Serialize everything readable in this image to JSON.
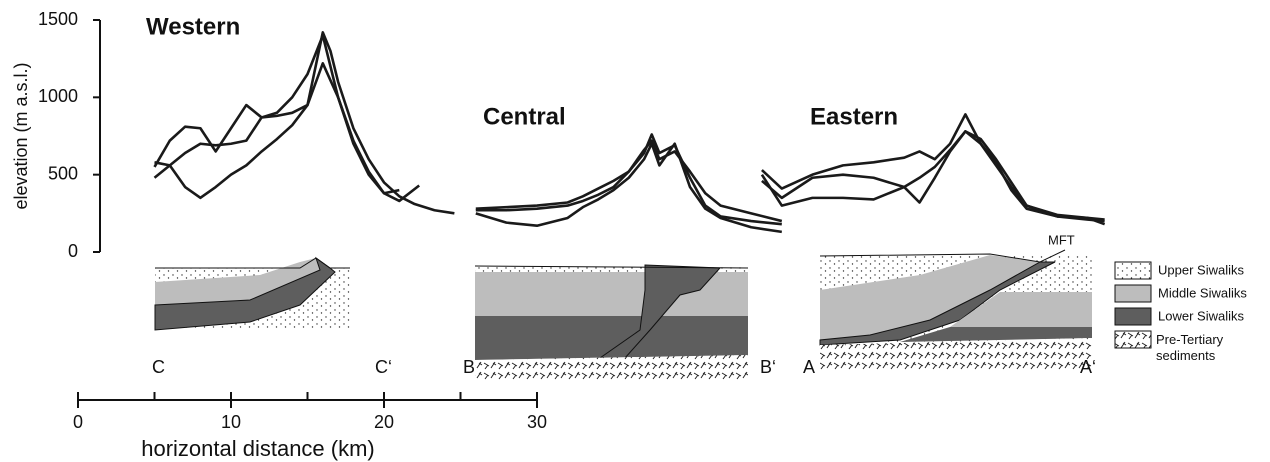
{
  "chart_data": {
    "type": "line",
    "y_label": "elevation (m a.s.l.)",
    "x_label": "horizontal distance (km)",
    "xlim": [
      0,
      30
    ],
    "xticks": [
      0,
      10,
      20,
      30
    ],
    "xminor_ticks": [
      5,
      15,
      25
    ],
    "ylim": [
      0,
      1500
    ],
    "yticks": [
      0,
      500,
      1000,
      1500
    ],
    "color": "#1a1a1a",
    "panels": [
      {
        "title": "Western",
        "section_labels": [
          "C",
          "C‘"
        ],
        "profiles": [
          {
            "x": [
              5,
              6,
              7,
              8,
              9,
              10,
              11,
              12,
              13,
              14,
              15,
              16,
              16.5,
              17,
              18,
              19,
              20,
              21,
              22,
              23.3,
              24.6
            ],
            "values": [
              480,
              560,
              640,
              700,
              690,
              700,
              720,
              870,
              880,
              900,
              950,
              1420,
              1300,
              1100,
              800,
              600,
              450,
              360,
              310,
              270,
              250
            ]
          },
          {
            "x": [
              5,
              6,
              7,
              8,
              9,
              10,
              11,
              12,
              13,
              14,
              15,
              16,
              17,
              18,
              19,
              20,
              21
            ],
            "values": [
              550,
              720,
              810,
              800,
              650,
              800,
              950,
              870,
              900,
              1000,
              1150,
              1400,
              1000,
              700,
              500,
              380,
              400
            ]
          },
          {
            "x": [
              5,
              6,
              7,
              8,
              9,
              10,
              11,
              12,
              13,
              14,
              15,
              16,
              17,
              18,
              19,
              20,
              21,
              22.3
            ],
            "values": [
              580,
              560,
              420,
              350,
              420,
              500,
              560,
              650,
              730,
              820,
              950,
              1220,
              1000,
              720,
              520,
              380,
              330,
              430
            ]
          }
        ]
      },
      {
        "title": "Central",
        "section_labels": [
          "B",
          "B‘"
        ],
        "profiles": [
          {
            "x": [
              26,
              28,
              30,
              32,
              33,
              34,
              35,
              36,
              37,
              37.5,
              38,
              39,
              40,
              41,
              42,
              44,
              46
            ],
            "values": [
              270,
              270,
              280,
              300,
              330,
              370,
              420,
              520,
              640,
              760,
              640,
              690,
              480,
              300,
              230,
              200,
              180
            ]
          },
          {
            "x": [
              26,
              28,
              30,
              32,
              33,
              34,
              35,
              36,
              37,
              37.5,
              38,
              39,
              40,
              41,
              42,
              44,
              46
            ],
            "values": [
              250,
              190,
              170,
              220,
              290,
              340,
              400,
              480,
              600,
              700,
              560,
              700,
              420,
              280,
              220,
              160,
              130
            ]
          },
          {
            "x": [
              26,
              28,
              30,
              32,
              33,
              34,
              35,
              36,
              37,
              37.5,
              38,
              39,
              40,
              41,
              42,
              44,
              46
            ],
            "values": [
              280,
              290,
              300,
              320,
              360,
              410,
              460,
              520,
              660,
              720,
              600,
              650,
              520,
              380,
              300,
              250,
              200
            ]
          }
        ]
      },
      {
        "title": "Eastern",
        "section_labels": [
          "A",
          "A‘"
        ],
        "profiles": [
          {
            "x": [
              44.7,
              46,
              48,
              50,
              52,
              54,
              55,
              56,
              57,
              58,
              59,
              60,
              61,
              62,
              64,
              66,
              67.1
            ],
            "values": [
              530,
              410,
              500,
              560,
              580,
              610,
              650,
              600,
              700,
              890,
              700,
              580,
              400,
              280,
              230,
              210,
              200
            ]
          },
          {
            "x": [
              44.7,
              46,
              48,
              50,
              52,
              54,
              55,
              56,
              57,
              58,
              59,
              60,
              61,
              62,
              64,
              66,
              67.1
            ],
            "values": [
              500,
              300,
              350,
              350,
              340,
              420,
              480,
              550,
              660,
              780,
              730,
              600,
              450,
              300,
              240,
              220,
              180
            ]
          },
          {
            "x": [
              44.7,
              46,
              48,
              50,
              52,
              54,
              55,
              56,
              57,
              58,
              59,
              60,
              61,
              62,
              64,
              66,
              67.1
            ],
            "values": [
              460,
              350,
              480,
              500,
              480,
              420,
              320,
              480,
              650,
              780,
              700,
              560,
              420,
              300,
              230,
              220,
              210
            ]
          }
        ]
      }
    ],
    "annotation": "MFT",
    "legend": [
      "Upper Siwaliks",
      "Middle Siwaliks",
      "Lower Siwaliks",
      "Pre-Tertiary sediments"
    ]
  }
}
